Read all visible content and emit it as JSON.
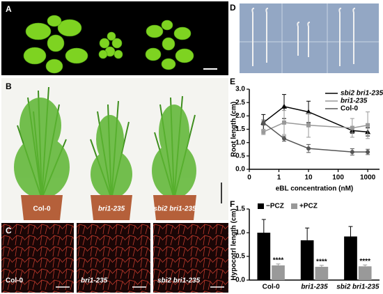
{
  "panel_labels": [
    "A",
    "B",
    "C",
    "D",
    "E",
    "F"
  ],
  "photo_labels": {
    "B": [
      "Col-0",
      "bri1-235",
      "sbi2 bri1-235"
    ],
    "C": [
      "Col-0",
      "bri1-235",
      "sbi2 bri1-235"
    ]
  },
  "chart_data": [
    {
      "type": "line",
      "x_label": "eBL concentration (nM)",
      "y_label": "Root length (cm)",
      "x": [
        0.3,
        1.5,
        10,
        300,
        1000
      ],
      "xlog": true,
      "xlim": [
        0.1,
        2500
      ],
      "xticks": [
        {
          "value": 0.1,
          "label": "0"
        },
        1,
        10,
        100,
        1000
      ],
      "ylim": [
        0,
        3
      ],
      "yticks": [
        {
          "value": 0,
          "label": "0.0"
        },
        {
          "value": 0.5,
          "label": "0.5"
        },
        {
          "value": 1,
          "label": "1.0"
        },
        {
          "value": 1.5,
          "label": "1.5"
        },
        {
          "value": 2,
          "label": "2.0"
        },
        {
          "value": 2.5,
          "label": "2.5"
        },
        {
          "value": 3,
          "label": "3.0"
        }
      ],
      "legend": "upper right",
      "series": [
        {
          "name": "sbi2 bri1-235",
          "color": "#000000",
          "marker": "triangle",
          "values": [
            1.75,
            2.35,
            2.15,
            1.45,
            1.4
          ],
          "errors": [
            0.3,
            0.45,
            0.4,
            0.1,
            0.15
          ]
        },
        {
          "name": "bri1-235",
          "color": "#999999",
          "marker": "square",
          "values": [
            1.4,
            1.75,
            1.65,
            1.55,
            1.65
          ],
          "errors": [
            0.1,
            0.45,
            0.45,
            0.35,
            0.5
          ]
        },
        {
          "name": "Col-0",
          "color": "#555555",
          "marker": "circle",
          "values": [
            1.75,
            1.15,
            0.78,
            0.65,
            0.65
          ],
          "errors": [
            0.1,
            0.1,
            0.15,
            0.12,
            0.1
          ]
        }
      ]
    },
    {
      "type": "bar",
      "y_label": "Hypocotrl length (cm)",
      "categories": [
        "Col-0",
        "bri1-235",
        "sbi2 bri1-235"
      ],
      "ylim": [
        0,
        1.5
      ],
      "yticks": [
        {
          "value": 0,
          "label": "0.0"
        },
        {
          "value": 0.5,
          "label": "0.5"
        },
        {
          "value": 1,
          "label": "1.0"
        },
        {
          "value": 1.5,
          "label": "1.5"
        }
      ],
      "legend": "top",
      "series": [
        {
          "name": "−PCZ",
          "color": "#000000",
          "values": [
            1.0,
            0.84,
            0.92
          ],
          "errors": [
            0.28,
            0.26,
            0.21
          ]
        },
        {
          "name": "+PCZ",
          "color": "#999999",
          "values": [
            0.31,
            0.28,
            0.29
          ],
          "errors": [
            0.03,
            0.03,
            0.03
          ],
          "value_labels": [
            "****",
            "****",
            "****"
          ]
        }
      ]
    }
  ]
}
